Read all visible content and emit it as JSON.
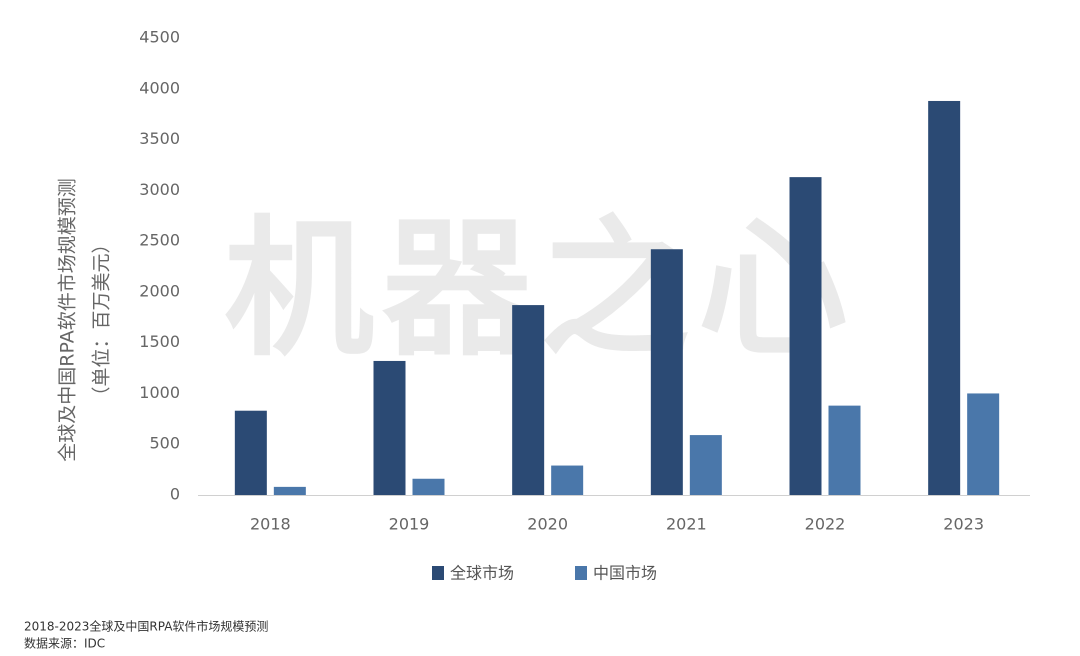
{
  "chart_data": {
    "type": "bar",
    "watermark": "机器之心",
    "y_label": "全球及中国RPA软件市场规模预测",
    "y_unit": "（单位：百万美元）",
    "caption": "2018-2023全球及中国RPA软件市场规模预测",
    "source": "数据来源：IDC",
    "categories": [
      "2018",
      "2019",
      "2020",
      "2021",
      "2022",
      "2023"
    ],
    "series": [
      {
        "name": "全球市场",
        "color": "#2b4a74",
        "values": [
          830,
          1320,
          1870,
          2420,
          3130,
          3880
        ]
      },
      {
        "name": "中国市场",
        "color": "#4a77aa",
        "values": [
          80,
          160,
          290,
          590,
          880,
          1000
        ]
      }
    ],
    "ylim": [
      0,
      4500
    ],
    "yticks": [
      0,
      500,
      1000,
      1500,
      2000,
      2500,
      3000,
      3500,
      4000,
      4500
    ],
    "grid": false,
    "legend": "bottom"
  }
}
